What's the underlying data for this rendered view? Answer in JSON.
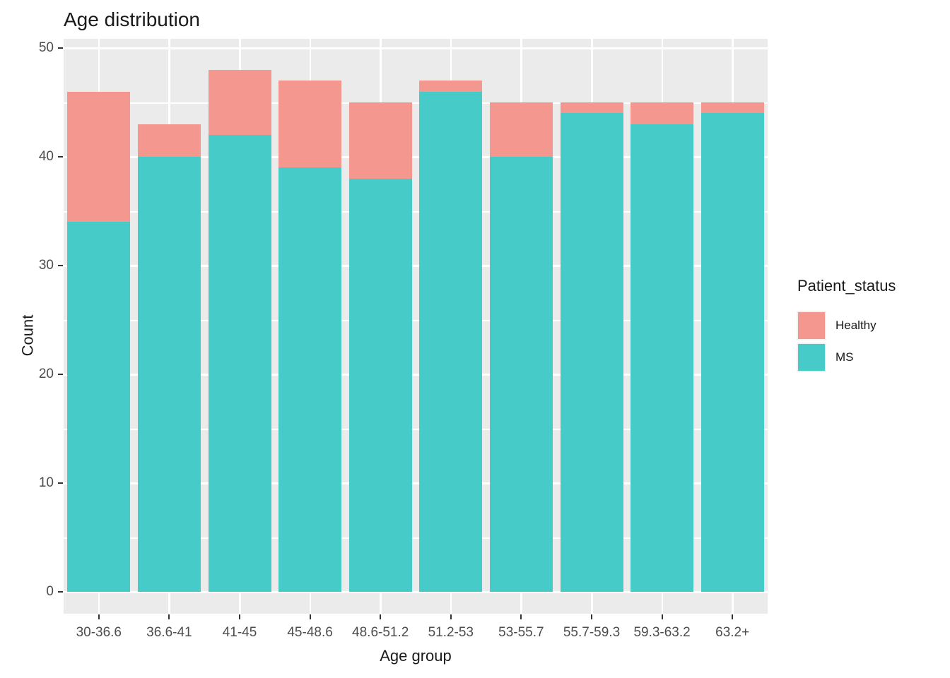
{
  "chart_data": {
    "type": "bar",
    "stacked": true,
    "title": "Age distribution",
    "xlabel": "Age group",
    "ylabel": "Count",
    "ylim": [
      0,
      50
    ],
    "yticks": [
      0,
      10,
      20,
      30,
      40,
      50
    ],
    "yticks_minor": [
      5,
      15,
      25,
      35,
      45
    ],
    "grid": true,
    "categories": [
      "30-36.6",
      "36.6-41",
      "41-45",
      "45-48.6",
      "48.6-51.2",
      "51.2-53",
      "53-55.7",
      "55.7-59.3",
      "59.3-63.2",
      "63.2+"
    ],
    "series": [
      {
        "name": "Healthy",
        "color": "#F4978E",
        "values": [
          12,
          3,
          6,
          8,
          7,
          1,
          5,
          1,
          2,
          1
        ]
      },
      {
        "name": "MS",
        "color": "#46CBC9",
        "values": [
          34,
          40,
          42,
          39,
          38,
          46,
          40,
          44,
          43,
          44
        ]
      }
    ],
    "totals": [
      46,
      43,
      48,
      47,
      45,
      47,
      45,
      45,
      45,
      45
    ],
    "stack_order_bottom_to_top": [
      "MS",
      "Healthy"
    ],
    "legend": {
      "title": "Patient_status",
      "position": "right"
    },
    "colors": {
      "panel_background": "#EBEBEB",
      "gridline": "#FFFFFF",
      "tick_label": "#4D4D4D",
      "tick_mark": "#333333",
      "text": "#1A1A1A",
      "legend_key_background": "#F2F2F2"
    }
  }
}
